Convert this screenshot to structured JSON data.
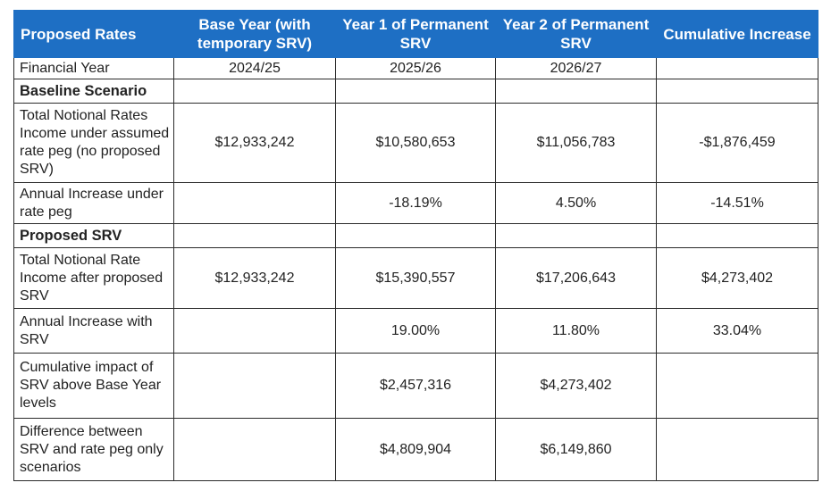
{
  "table": {
    "headers": [
      "Proposed Rates",
      "Base Year (with temporary SRV)",
      "Year 1 of Permanent SRV",
      "Year 2 of Permanent SRV",
      "Cumulative Increase"
    ],
    "rows": [
      {
        "label": "Financial Year",
        "cells": [
          "2024/25",
          "2025/26",
          "2026/27",
          ""
        ]
      },
      {
        "label": "Baseline Scenario",
        "section": true,
        "cells": [
          "",
          "",
          "",
          ""
        ]
      },
      {
        "label": "Total Notional Rates Income under assumed rate peg (no proposed SRV)",
        "cells": [
          "$12,933,242",
          "$10,580,653",
          "$11,056,783",
          "-$1,876,459"
        ]
      },
      {
        "label": "Annual Increase under rate peg",
        "cells": [
          "",
          "-18.19%",
          "4.50%",
          "-14.51%"
        ]
      },
      {
        "label": "Proposed SRV",
        "section": true,
        "cells": [
          "",
          "",
          "",
          ""
        ]
      },
      {
        "label": "Total Notional Rate Income after proposed SRV",
        "cells": [
          "$12,933,242",
          "$15,390,557",
          "$17,206,643",
          "$4,273,402"
        ]
      },
      {
        "label": "Annual Increase with SRV",
        "cells": [
          "",
          "19.00%",
          "11.80%",
          "33.04%"
        ]
      },
      {
        "label": "Cumulative impact of SRV above Base Year levels",
        "cells": [
          "",
          "$2,457,316",
          "$4,273,402",
          ""
        ]
      },
      {
        "label": "Difference between SRV and rate peg only scenarios",
        "cells": [
          "",
          "$4,809,904",
          "$6,149,860",
          ""
        ]
      }
    ]
  }
}
